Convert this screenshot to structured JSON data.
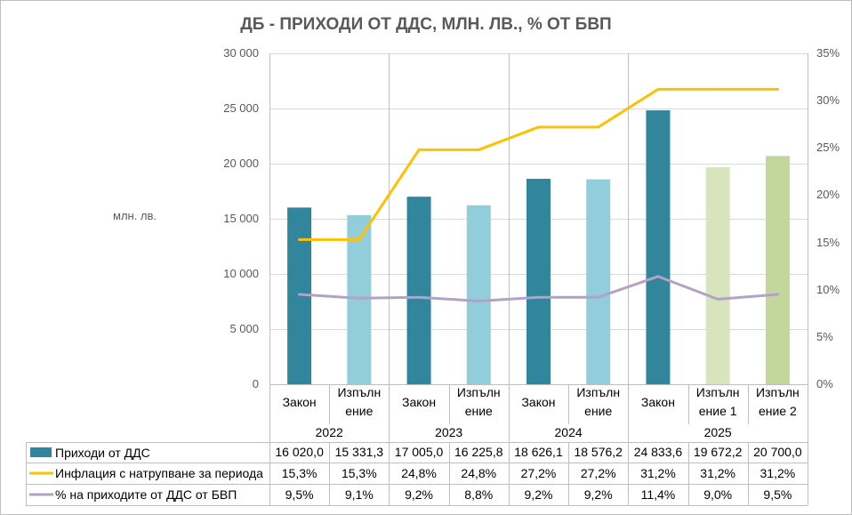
{
  "chart_data": {
    "type": "bar",
    "title": "ДБ - ПРИХОДИ ОТ ДДС, МЛН. ЛВ., % ОТ БВП",
    "xlabel": "",
    "ylabel": "млн. лв.",
    "ylim": [
      0,
      30000
    ],
    "y2lim": [
      0,
      35
    ],
    "grid": true,
    "yticks": [
      {
        "value": 0,
        "label": "0"
      },
      {
        "value": 5000,
        "label": "5 000"
      },
      {
        "value": 10000,
        "label": "10 000"
      },
      {
        "value": 15000,
        "label": "15 000"
      },
      {
        "value": 20000,
        "label": "20 000"
      },
      {
        "value": 25000,
        "label": "25 000"
      },
      {
        "value": 30000,
        "label": "30 000"
      }
    ],
    "y2ticks": [
      {
        "value": 0,
        "label": "0%"
      },
      {
        "value": 5,
        "label": "5%"
      },
      {
        "value": 10,
        "label": "10%"
      },
      {
        "value": 15,
        "label": "15%"
      },
      {
        "value": 20,
        "label": "20%"
      },
      {
        "value": 25,
        "label": "25%"
      },
      {
        "value": 30,
        "label": "30%"
      },
      {
        "value": 35,
        "label": "35%"
      }
    ],
    "groups": [
      {
        "label": "2022",
        "categories": [
          "Закон",
          "Изпълн\nение"
        ]
      },
      {
        "label": "2023",
        "categories": [
          "Закон",
          "Изпълн\nение"
        ]
      },
      {
        "label": "2024",
        "categories": [
          "Закон",
          "Изпълн\nение"
        ]
      },
      {
        "label": "2025",
        "categories": [
          "Закон",
          "Изпълн\nение 1",
          "Изпълн\nение 2"
        ]
      }
    ],
    "series": [
      {
        "name": "Приходи от ДДС",
        "type": "bar",
        "secondary_axis": false,
        "color": "#31859c",
        "point_colors": [
          "#31859c",
          "#92cddc",
          "#31859c",
          "#92cddc",
          "#31859c",
          "#92cddc",
          "#31859c",
          "#d7e4bd",
          "#c3d69b"
        ],
        "values": [
          16020.0,
          15331.3,
          17005.0,
          16225.8,
          18626.1,
          18576.2,
          24833.6,
          19672.2,
          20700.0
        ],
        "labels": [
          "16 020,0",
          "15 331,3",
          "17 005,0",
          "16 225,8",
          "18 626,1",
          "18 576,2",
          "24 833,6",
          "19 672,2",
          "20 700,0"
        ]
      },
      {
        "name": "Инфлация с натрупване за периода",
        "type": "line",
        "secondary_axis": true,
        "color": "#ffc000",
        "values": [
          15.3,
          15.3,
          24.8,
          24.8,
          27.2,
          27.2,
          31.2,
          31.2,
          31.2
        ],
        "labels": [
          "15,3%",
          "15,3%",
          "24,8%",
          "24,8%",
          "27,2%",
          "27,2%",
          "31,2%",
          "31,2%",
          "31,2%"
        ]
      },
      {
        "name": "% на приходите от ДДС от БВП",
        "type": "line",
        "secondary_axis": true,
        "color": "#b3a2c7",
        "values": [
          9.5,
          9.1,
          9.2,
          8.8,
          9.2,
          9.2,
          11.4,
          9.0,
          9.5
        ],
        "labels": [
          "9,5%",
          "9,1%",
          "9,2%",
          "8,8%",
          "9,2%",
          "9,2%",
          "11,4%",
          "9,0%",
          "9,5%"
        ]
      }
    ]
  }
}
